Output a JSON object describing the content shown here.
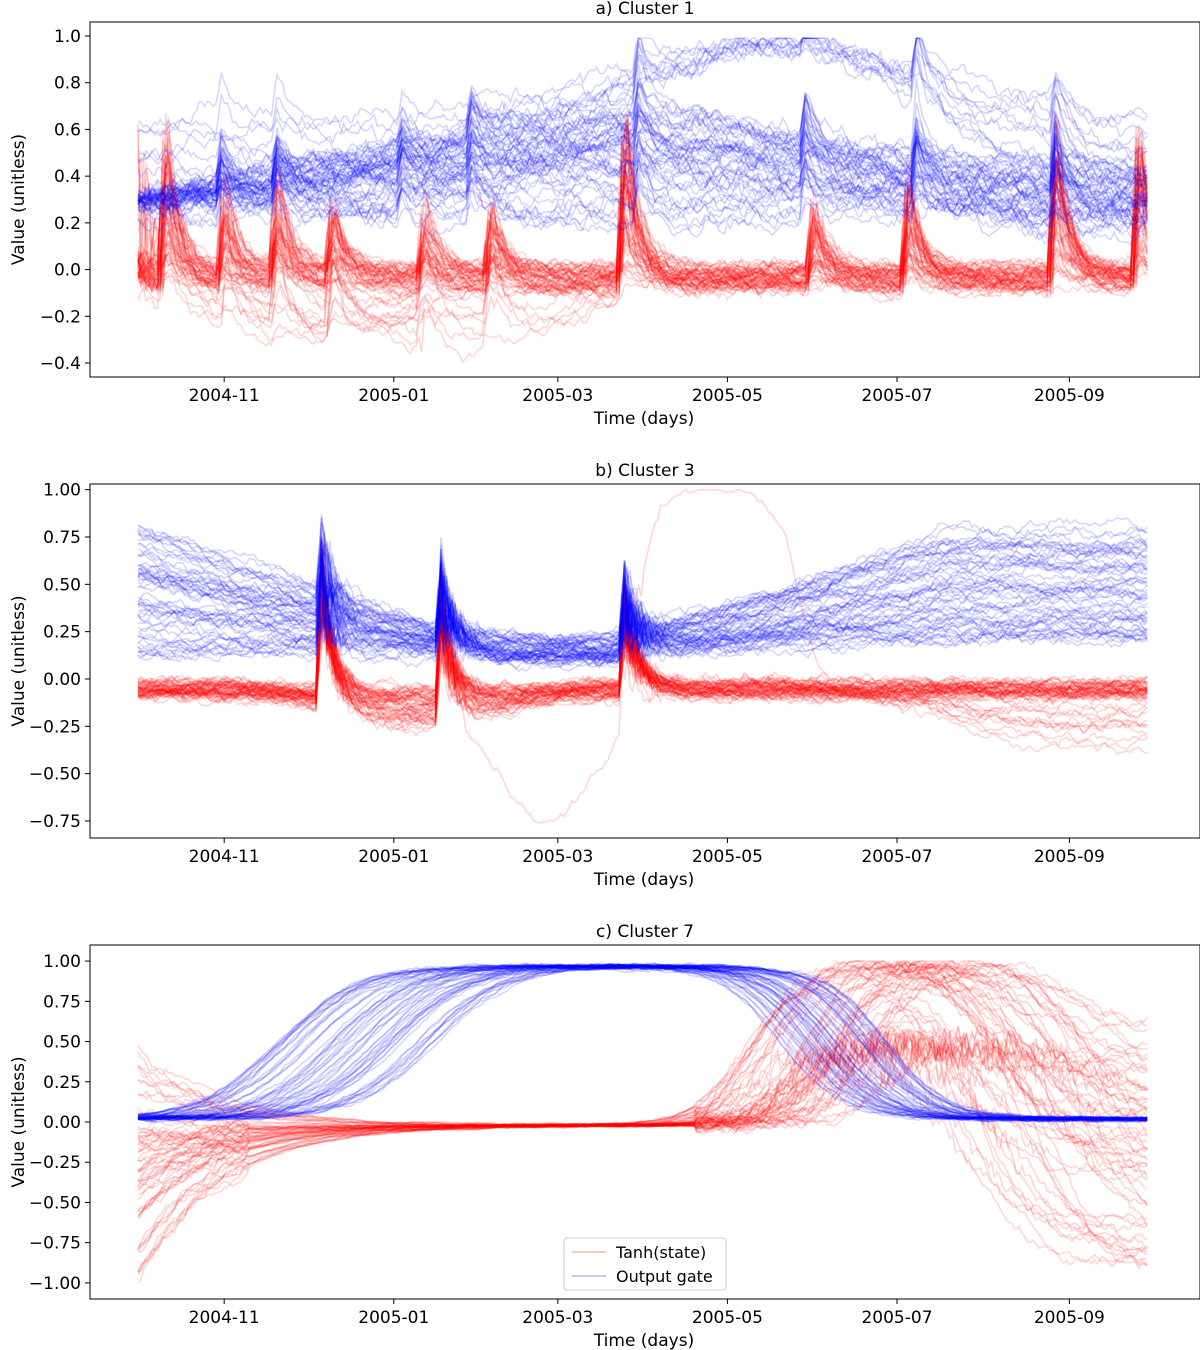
{
  "chart_data": [
    {
      "type": "line",
      "title": "a) Cluster 1",
      "xlabel": "Time (days)",
      "ylabel": "Value (unitless)",
      "x_range": [
        "2004-10-01",
        "2005-09-30"
      ],
      "ylim": [
        -0.46,
        1.06
      ],
      "x_ticks": [
        "2004-11",
        "2005-01",
        "2005-03",
        "2005-05",
        "2005-07",
        "2005-09"
      ],
      "y_ticks": [
        -0.4,
        -0.2,
        0.0,
        0.2,
        0.4,
        0.6,
        0.8,
        1.0
      ],
      "y_tick_labels": [
        "−0.4",
        "−0.2",
        "0.0",
        "0.2",
        "0.4",
        "0.6",
        "0.8",
        "1.0"
      ],
      "grid": false,
      "series_count_per_group": 60,
      "series": [
        {
          "name": "Tanh(state)",
          "color": "#ff0000",
          "description_values": {
            "baseline": -0.03,
            "typical_band": [
              -0.2,
              0.15
            ],
            "spike_peaks": [
              [
                "2004-10-10",
                0.85
              ],
              [
                "2004-11-01",
                0.35
              ],
              [
                "2004-11-20",
                0.4
              ],
              [
                "2004-12-10",
                0.3
              ],
              [
                "2005-01-12",
                0.3
              ],
              [
                "2005-02-05",
                0.3
              ],
              [
                "2005-03-25",
                0.8
              ],
              [
                "2005-06-01",
                0.3
              ],
              [
                "2005-07-05",
                0.45
              ],
              [
                "2005-08-25",
                0.7
              ],
              [
                "2005-09-25",
                0.85
              ]
            ],
            "min": -0.4
          }
        },
        {
          "name": "Output gate",
          "color": "#0000ff",
          "description_values": {
            "typical_band": [
              0.2,
              0.7
            ],
            "start_mean": 0.3,
            "end_mean": 0.25,
            "max": 0.98,
            "high_group": [
              [
                "2005-03-15",
                0.7
              ],
              [
                "2005-05-01",
                0.97
              ],
              [
                "2005-06-15",
                0.97
              ],
              [
                "2005-08-15",
                0.75
              ]
            ]
          }
        }
      ]
    },
    {
      "type": "line",
      "title": "b) Cluster 3",
      "xlabel": "Time (days)",
      "ylabel": "Value (unitless)",
      "x_range": [
        "2004-10-01",
        "2005-09-30"
      ],
      "ylim": [
        -0.84,
        1.03
      ],
      "x_ticks": [
        "2004-11",
        "2005-01",
        "2005-03",
        "2005-05",
        "2005-07",
        "2005-09"
      ],
      "y_ticks": [
        -0.75,
        -0.5,
        -0.25,
        0.0,
        0.25,
        0.5,
        0.75,
        1.0
      ],
      "y_tick_labels": [
        "−0.75",
        "−0.50",
        "−0.25",
        "0.00",
        "0.25",
        "0.50",
        "0.75",
        "1.00"
      ],
      "grid": false,
      "series_count_per_group": 60,
      "series": [
        {
          "name": "Tanh(state)",
          "color": "#ff0000",
          "description_values": {
            "baseline": -0.05,
            "spike_peaks": [
              [
                "2004-12-05",
                0.8
              ],
              [
                "2005-01-18",
                0.7
              ],
              [
                "2005-03-25",
                0.5
              ]
            ],
            "outlier_min": [
              [
                "2005-02-25",
                -0.75
              ]
            ],
            "outlier_max": [
              [
                "2005-04-15",
                1.0
              ],
              [
                "2005-05-20",
                1.0
              ]
            ]
          }
        },
        {
          "name": "Output gate",
          "color": "#0000ff",
          "description_values": {
            "start_band": [
              0.15,
              0.8
            ],
            "mid_mean": [
              [
                "2005-02-15",
                0.15
              ]
            ],
            "end_band": [
              0.2,
              0.9
            ],
            "spike_peaks": [
              [
                "2004-12-05",
                0.85
              ],
              [
                "2005-01-18",
                0.8
              ],
              [
                "2005-03-25",
                0.6
              ]
            ]
          }
        }
      ]
    },
    {
      "type": "line",
      "title": "c) Cluster 7",
      "xlabel": "Time (days)",
      "ylabel": "Value (unitless)",
      "x_range": [
        "2004-10-01",
        "2005-09-30"
      ],
      "ylim": [
        -1.1,
        1.1
      ],
      "x_ticks": [
        "2004-11",
        "2005-01",
        "2005-03",
        "2005-05",
        "2005-07",
        "2005-09"
      ],
      "y_ticks": [
        -1.0,
        -0.75,
        -0.5,
        -0.25,
        0.0,
        0.25,
        0.5,
        0.75,
        1.0
      ],
      "y_tick_labels": [
        "−1.00",
        "−0.75",
        "−0.50",
        "−0.25",
        "0.00",
        "0.25",
        "0.50",
        "0.75",
        "1.00"
      ],
      "grid": false,
      "legend": {
        "placement": "lower-center",
        "entries": [
          "Tanh(state)",
          "Output gate"
        ]
      },
      "series_count_per_group": 60,
      "series": [
        {
          "name": "Tanh(state)",
          "color": "#ff0000",
          "description_values": {
            "start_band": [
              -1.0,
              0.6
            ],
            "flat_mid": 0.0,
            "rise_window": [
              "2005-05-01",
              "2005-07-01"
            ],
            "plateau": [
              [
                "2005-07-01",
                1.0
              ],
              [
                "2005-08-15",
                1.0
              ]
            ],
            "end_band": [
              -1.0,
              0.7
            ]
          }
        },
        {
          "name": "Output gate",
          "color": "#0000ff",
          "description_values": {
            "start": 0.02,
            "rise_window": [
              "2004-11-01",
              "2005-01-15"
            ],
            "plateau": [
              [
                "2005-01-15",
                0.97
              ],
              [
                "2005-05-01",
                0.97
              ]
            ],
            "fall_window": [
              "2005-05-01",
              "2005-07-15"
            ],
            "end": 0.01
          }
        }
      ]
    }
  ]
}
